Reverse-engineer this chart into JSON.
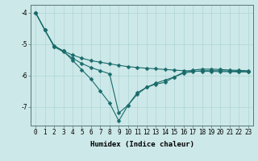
{
  "xlabel": "Humidex (Indice chaleur)",
  "x": [
    0,
    1,
    2,
    3,
    4,
    5,
    6,
    7,
    8,
    9,
    10,
    11,
    12,
    13,
    14,
    15,
    16,
    17,
    18,
    19,
    20,
    21,
    22,
    23
  ],
  "line1": [
    -4.0,
    -4.55,
    -5.08,
    -5.22,
    -5.35,
    -5.45,
    -5.53,
    -5.58,
    -5.63,
    -5.68,
    -5.72,
    -5.75,
    -5.77,
    -5.79,
    -5.81,
    -5.83,
    -5.85,
    -5.86,
    -5.87,
    -5.87,
    -5.88,
    -5.88,
    -5.89,
    -5.89
  ],
  "line2": [
    -4.0,
    -4.55,
    -5.08,
    -5.25,
    -5.45,
    -5.62,
    -5.75,
    -5.85,
    -5.95,
    -7.2,
    -6.95,
    -6.6,
    -6.38,
    -6.25,
    -6.15,
    -6.05,
    -5.93,
    -5.88,
    -5.85,
    -5.85,
    -5.85,
    -5.86,
    -5.87,
    -5.88
  ],
  "line3": [
    -4.0,
    -4.55,
    -5.05,
    -5.22,
    -5.52,
    -5.82,
    -6.12,
    -6.5,
    -6.88,
    -7.45,
    -6.95,
    -6.55,
    -6.38,
    -6.28,
    -6.22,
    -6.05,
    -5.9,
    -5.83,
    -5.8,
    -5.8,
    -5.81,
    -5.83,
    -5.84,
    -5.85
  ],
  "bg_color": "#cde8e8",
  "line_color": "#1a6b6b",
  "grid_color": "#aed4d4",
  "ylim": [
    -7.6,
    -3.75
  ],
  "yticks": [
    -7,
    -6,
    -5,
    -4
  ],
  "markersize": 2.5,
  "linewidth": 0.8,
  "fontsize_label": 6.5,
  "fontsize_tick": 5.5
}
